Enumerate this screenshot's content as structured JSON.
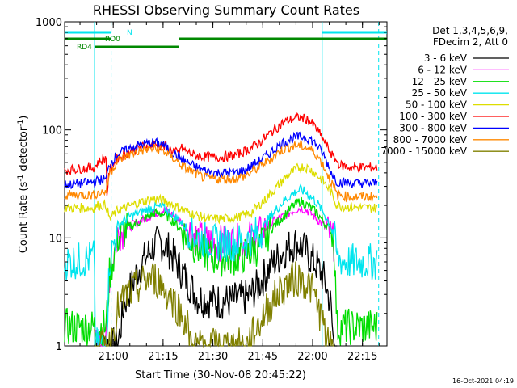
{
  "chart_data": {
    "type": "line",
    "title": "RHESSI Observing Summary Count Rates",
    "xlabel": "Start Time (30-Nov-08 20:45:22)",
    "ylabel_main": "Count Rate (s",
    "ylabel_sup1": "-1",
    "ylabel_mid": " detector",
    "ylabel_sup2": "-1",
    "ylabel_end": ")",
    "y_scale": "log",
    "ylim": [
      1,
      1000
    ],
    "xlim_minutes_after_20_45_22": [
      0,
      97
    ],
    "x_ticks": [
      {
        "t": 14.63,
        "label": "21:00"
      },
      {
        "t": 29.63,
        "label": "21:15"
      },
      {
        "t": 44.63,
        "label": "21:30"
      },
      {
        "t": 59.63,
        "label": "21:45"
      },
      {
        "t": 74.63,
        "label": "22:00"
      },
      {
        "t": 89.63,
        "label": "22:15"
      }
    ],
    "y_ticks": [
      {
        "v": 1,
        "label": "1"
      },
      {
        "v": 10,
        "label": "10"
      },
      {
        "v": 100,
        "label": "100"
      },
      {
        "v": 1000,
        "label": "1000"
      }
    ],
    "legend_header": [
      "Det 1,3,4,5,6,9,",
      "FDecim 2, Att 0"
    ],
    "timestamp": "16-Oct-2021 04:19",
    "series": [
      {
        "name": "3 - 6 keV",
        "color": "#000000",
        "points": [
          [
            9.0,
            1.0
          ],
          [
            10.0,
            1.0
          ],
          [
            12.5,
            1.0
          ],
          [
            16,
            1.0
          ],
          [
            18,
            2.5
          ],
          [
            20,
            3.5
          ],
          [
            22,
            5
          ],
          [
            25,
            7
          ],
          [
            27,
            8.5
          ],
          [
            29,
            9
          ],
          [
            31,
            8
          ],
          [
            33,
            6.5
          ],
          [
            35,
            5
          ],
          [
            37,
            4
          ],
          [
            40,
            2.8
          ],
          [
            45,
            2.6
          ],
          [
            50,
            2.6
          ],
          [
            55,
            2.8
          ],
          [
            58,
            3.5
          ],
          [
            62,
            5.5
          ],
          [
            66,
            7.5
          ],
          [
            68,
            8.5
          ],
          [
            70,
            9
          ],
          [
            72,
            8
          ],
          [
            74,
            6.5
          ],
          [
            76,
            5.5
          ],
          [
            78,
            4.2
          ],
          [
            80,
            2.5
          ],
          [
            81,
            1.0
          ],
          [
            82,
            1.0
          ]
        ]
      },
      {
        "name": "6 - 12 keV",
        "color": "#ff00ff",
        "points": [
          [
            9.0,
            1.0
          ],
          [
            12.5,
            1.0
          ],
          [
            13.5,
            4.5
          ],
          [
            16,
            11
          ],
          [
            20,
            13
          ],
          [
            24,
            15
          ],
          [
            27,
            17
          ],
          [
            30,
            18
          ],
          [
            33,
            16
          ],
          [
            36,
            13
          ],
          [
            40,
            10
          ],
          [
            45,
            9
          ],
          [
            50,
            9
          ],
          [
            55,
            9.5
          ],
          [
            59,
            11
          ],
          [
            62,
            13.5
          ],
          [
            66,
            16
          ],
          [
            69,
            18
          ],
          [
            71,
            19
          ],
          [
            73,
            18
          ],
          [
            76,
            15
          ],
          [
            78,
            13
          ],
          [
            80,
            10.5
          ],
          [
            81,
            9
          ]
        ]
      },
      {
        "name": "12 - 25 keV",
        "color": "#00dd00",
        "points": [
          [
            0,
            1.5
          ],
          [
            5,
            1.5
          ],
          [
            9.0,
            1.5
          ],
          [
            12.5,
            1.5
          ],
          [
            13.5,
            4.5
          ],
          [
            16,
            10
          ],
          [
            20,
            13
          ],
          [
            24,
            15
          ],
          [
            27,
            17
          ],
          [
            30,
            16.5
          ],
          [
            33,
            14
          ],
          [
            36,
            11
          ],
          [
            40,
            8
          ],
          [
            45,
            6.5
          ],
          [
            50,
            6.5
          ],
          [
            55,
            7
          ],
          [
            59,
            8.5
          ],
          [
            62,
            12
          ],
          [
            66,
            16
          ],
          [
            69,
            20
          ],
          [
            71,
            22
          ],
          [
            73,
            20
          ],
          [
            76,
            17
          ],
          [
            78,
            14
          ],
          [
            80,
            12
          ],
          [
            81,
            10
          ],
          [
            82,
            1.5
          ],
          [
            85,
            1.5
          ],
          [
            90,
            1.5
          ],
          [
            94,
            1.5
          ]
        ]
      },
      {
        "name": "25 - 50 keV",
        "color": "#00e5ee",
        "points": [
          [
            0,
            6
          ],
          [
            5,
            6.2
          ],
          [
            9.0,
            6.5
          ],
          [
            9.1,
            1.0
          ],
          [
            12.5,
            1.0
          ],
          [
            13.5,
            6
          ],
          [
            16,
            13
          ],
          [
            20,
            16
          ],
          [
            24,
            18
          ],
          [
            27,
            19.5
          ],
          [
            30,
            19
          ],
          [
            33,
            16
          ],
          [
            36,
            13
          ],
          [
            40,
            10
          ],
          [
            45,
            9
          ],
          [
            50,
            9
          ],
          [
            55,
            9.5
          ],
          [
            59,
            11.5
          ],
          [
            62,
            16
          ],
          [
            66,
            22
          ],
          [
            69,
            26
          ],
          [
            71,
            28
          ],
          [
            73,
            26
          ],
          [
            76,
            21
          ],
          [
            78,
            17
          ],
          [
            80,
            13
          ],
          [
            81,
            11
          ],
          [
            82,
            6.5
          ],
          [
            85,
            6
          ],
          [
            90,
            6
          ],
          [
            94,
            6
          ]
        ]
      },
      {
        "name": "50 - 100 keV",
        "color": "#dddd00",
        "points": [
          [
            0,
            19
          ],
          [
            5,
            19
          ],
          [
            9.0,
            19
          ],
          [
            10,
            20
          ],
          [
            12.5,
            20
          ],
          [
            13.5,
            15
          ],
          [
            16,
            18
          ],
          [
            20,
            20
          ],
          [
            24,
            22
          ],
          [
            27,
            23
          ],
          [
            30,
            22
          ],
          [
            33,
            20
          ],
          [
            36,
            18
          ],
          [
            40,
            16
          ],
          [
            44,
            15
          ],
          [
            48,
            15
          ],
          [
            52,
            15.5
          ],
          [
            56,
            17
          ],
          [
            60,
            22
          ],
          [
            64,
            30
          ],
          [
            67,
            38
          ],
          [
            70,
            44
          ],
          [
            72,
            46
          ],
          [
            74,
            43
          ],
          [
            76,
            38
          ],
          [
            78,
            33
          ],
          [
            80,
            27
          ],
          [
            82,
            20
          ],
          [
            85,
            19.5
          ],
          [
            90,
            19
          ],
          [
            94,
            19
          ]
        ]
      },
      {
        "name": "100 - 300 keV",
        "color": "#ff0000",
        "points": [
          [
            0,
            42
          ],
          [
            5,
            44
          ],
          [
            9.0,
            45
          ],
          [
            10,
            50
          ],
          [
            12.5,
            55
          ],
          [
            12.7,
            25
          ],
          [
            13.5,
            42
          ],
          [
            16,
            55
          ],
          [
            19,
            62
          ],
          [
            22,
            68
          ],
          [
            25,
            72
          ],
          [
            27,
            73
          ],
          [
            29,
            72
          ],
          [
            31,
            68
          ],
          [
            33,
            63
          ],
          [
            34.5,
            60
          ],
          [
            34.6,
            70
          ],
          [
            36,
            65
          ],
          [
            39,
            58
          ],
          [
            43,
            56
          ],
          [
            47,
            56
          ],
          [
            51,
            58
          ],
          [
            55,
            65
          ],
          [
            59,
            78
          ],
          [
            63,
            100
          ],
          [
            66,
            118
          ],
          [
            69,
            128
          ],
          [
            71,
            130
          ],
          [
            73,
            125
          ],
          [
            75,
            110
          ],
          [
            77,
            90
          ],
          [
            79,
            70
          ],
          [
            81,
            55
          ],
          [
            83,
            47
          ],
          [
            86,
            45
          ],
          [
            90,
            45
          ],
          [
            94,
            45
          ]
        ]
      },
      {
        "name": "300 - 800 keV",
        "color": "#0000ff",
        "points": [
          [
            0,
            31
          ],
          [
            5,
            32
          ],
          [
            9.0,
            33
          ],
          [
            10,
            34
          ],
          [
            12.5,
            35
          ],
          [
            13.5,
            48
          ],
          [
            16,
            60
          ],
          [
            19,
            66
          ],
          [
            22,
            72
          ],
          [
            25,
            75
          ],
          [
            27,
            76
          ],
          [
            29,
            74
          ],
          [
            31,
            68
          ],
          [
            33,
            60
          ],
          [
            36,
            52
          ],
          [
            39,
            46
          ],
          [
            42,
            42
          ],
          [
            46,
            40
          ],
          [
            50,
            40
          ],
          [
            54,
            42
          ],
          [
            58,
            50
          ],
          [
            62,
            62
          ],
          [
            65,
            74
          ],
          [
            68,
            82
          ],
          [
            70,
            86
          ],
          [
            72,
            86
          ],
          [
            74,
            82
          ],
          [
            76,
            72
          ],
          [
            78,
            58
          ],
          [
            80,
            42
          ],
          [
            82,
            33
          ],
          [
            86,
            32
          ],
          [
            90,
            32
          ],
          [
            94,
            32
          ]
        ]
      },
      {
        "name": "800 - 7000 keV",
        "color": "#ff8800",
        "points": [
          [
            0,
            25
          ],
          [
            5,
            25
          ],
          [
            9.0,
            25
          ],
          [
            10,
            26
          ],
          [
            12.5,
            27
          ],
          [
            13.5,
            40
          ],
          [
            16,
            52
          ],
          [
            19,
            58
          ],
          [
            22,
            63
          ],
          [
            25,
            66
          ],
          [
            27,
            67
          ],
          [
            29,
            65
          ],
          [
            31,
            60
          ],
          [
            33,
            54
          ],
          [
            36,
            45
          ],
          [
            39,
            40
          ],
          [
            42,
            36
          ],
          [
            46,
            35
          ],
          [
            50,
            35
          ],
          [
            54,
            37
          ],
          [
            58,
            44
          ],
          [
            62,
            54
          ],
          [
            65,
            64
          ],
          [
            68,
            70
          ],
          [
            70,
            72
          ],
          [
            72,
            70
          ],
          [
            74,
            66
          ],
          [
            76,
            58
          ],
          [
            78,
            46
          ],
          [
            80,
            34
          ],
          [
            82,
            25
          ],
          [
            86,
            24
          ],
          [
            90,
            24
          ],
          [
            94,
            24
          ]
        ]
      },
      {
        "name": "7000 - 15000 keV",
        "color": "#808000",
        "points": [
          [
            9.0,
            1.0
          ],
          [
            13.5,
            1.0
          ],
          [
            16,
            2.2
          ],
          [
            19,
            3
          ],
          [
            22,
            3.5
          ],
          [
            25,
            4.2
          ],
          [
            27,
            4.2
          ],
          [
            29,
            3.8
          ],
          [
            31,
            3
          ],
          [
            33,
            2.6
          ],
          [
            35,
            2
          ],
          [
            37,
            1.5
          ],
          [
            38,
            1.0
          ],
          [
            48,
            1.0
          ],
          [
            55,
            1.0
          ],
          [
            58,
            1.5
          ],
          [
            61,
            2.2
          ],
          [
            64,
            3.0
          ],
          [
            67,
            3.8
          ],
          [
            70,
            4.2
          ],
          [
            72,
            4
          ],
          [
            74,
            3.5
          ],
          [
            76,
            2.5
          ],
          [
            78,
            1.5
          ],
          [
            79,
            1.0
          ],
          [
            81,
            1.0
          ]
        ]
      }
    ],
    "flags": [
      {
        "label": "N",
        "color": "#00e5ee",
        "segments": [
          [
            0,
            14.0
          ],
          [
            77.5,
            97
          ]
        ]
      },
      {
        "label": "RD0",
        "color": "#008800",
        "segments": [
          [
            0,
            14.0
          ],
          [
            34.5,
            97
          ]
        ]
      },
      {
        "label": "RD4",
        "color": "#008800",
        "segments": [
          [
            9.0,
            34.5
          ]
        ]
      }
    ],
    "markers": [
      {
        "t": 9.0,
        "color": "#00e5ee",
        "style": "solid"
      },
      {
        "t": 14.0,
        "color": "#00e5ee",
        "style": "dashed"
      },
      {
        "t": 77.5,
        "color": "#00e5ee",
        "style": "solid"
      },
      {
        "t": 94.5,
        "color": "#00e5ee",
        "style": "dashed"
      }
    ]
  }
}
